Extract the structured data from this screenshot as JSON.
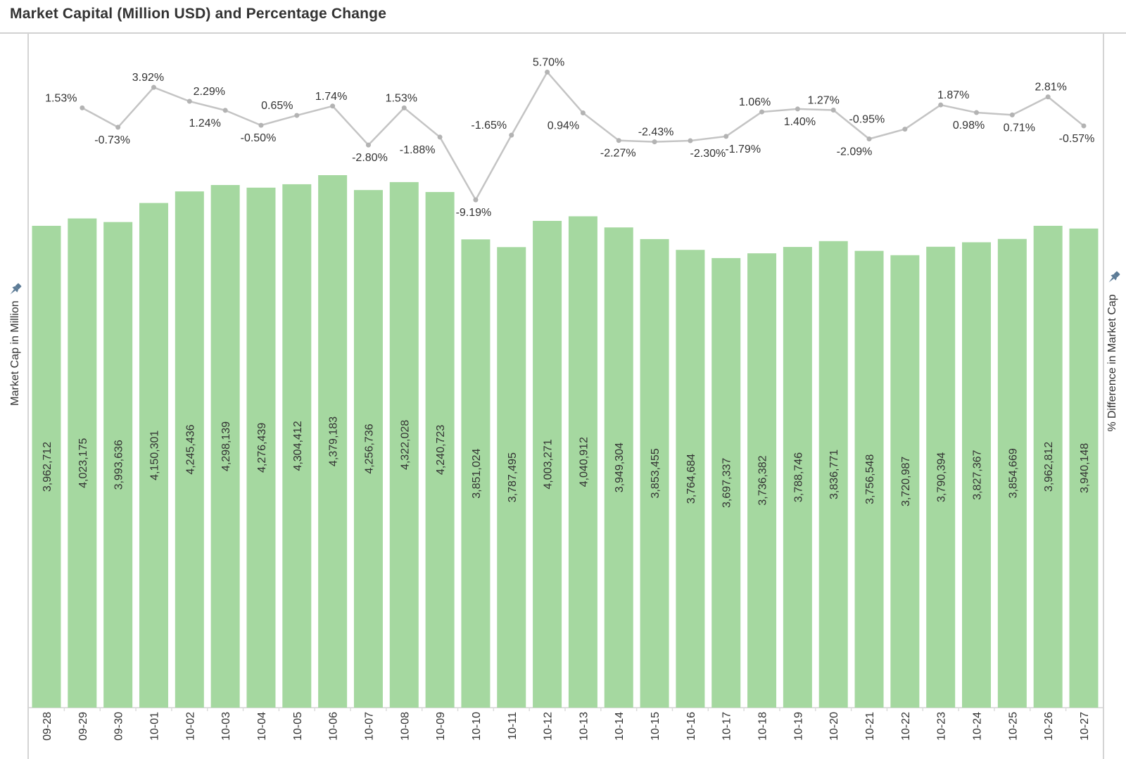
{
  "title": "Market Capital (Million USD) and Percentage Change",
  "left_axis": {
    "title": "Market Cap in Million",
    "pinned": true
  },
  "right_axis": {
    "title": "% Difference in Market Cap",
    "pinned": true
  },
  "colors": {
    "bar": "#a5d8a0",
    "line": "#c4c4c4",
    "marker": "#b3b3b3",
    "text": "#333333",
    "pane_border": "#d4d4d4",
    "tick": "#dcdcdc",
    "pin": "#5c7b96"
  },
  "chart_data": {
    "type": "combo-bar-line",
    "title": "Market Capital (Million USD) and Percentage Change",
    "categories": [
      "09-28",
      "09-29",
      "09-30",
      "10-01",
      "10-02",
      "10-03",
      "10-04",
      "10-05",
      "10-06",
      "10-07",
      "10-08",
      "10-09",
      "10-10",
      "10-11",
      "10-12",
      "10-13",
      "10-14",
      "10-15",
      "10-16",
      "10-17",
      "10-18",
      "10-19",
      "10-20",
      "10-21",
      "10-22",
      "10-23",
      "10-24",
      "10-25",
      "10-26",
      "10-27"
    ],
    "series": [
      {
        "name": "Market Cap in Million",
        "type": "bar",
        "axis": "left",
        "values": [
          3962712,
          4023175,
          3993636,
          4150301,
          4245436,
          4298139,
          4276439,
          4304412,
          4379183,
          4256736,
          4322028,
          4240723,
          3851024,
          3787495,
          4003271,
          4040912,
          3949304,
          3853455,
          3764684,
          3697337,
          3736382,
          3788746,
          3836771,
          3756548,
          3720987,
          3790394,
          3827367,
          3854669,
          3962812,
          3940148
        ],
        "labels": [
          "3,962,712",
          "4,023,175",
          "3,993,636",
          "4,150,301",
          "4,245,436",
          "4,298,139",
          "4,276,439",
          "4,304,412",
          "4,379,183",
          "4,256,736",
          "4,322,028",
          "4,240,723",
          "3,851,024",
          "3,787,495",
          "4,003,271",
          "4,040,912",
          "3,949,304",
          "3,853,455",
          "3,764,684",
          "3,697,337",
          "3,736,382",
          "3,788,746",
          "3,836,771",
          "3,756,548",
          "3,720,987",
          "3,790,394",
          "3,827,367",
          "3,854,669",
          "3,962,812",
          "3,940,148"
        ]
      },
      {
        "name": "% Difference in Market Cap",
        "type": "line",
        "axis": "right",
        "categories": [
          "09-29",
          "09-30",
          "10-01",
          "10-02",
          "10-03",
          "10-04",
          "10-05",
          "10-06",
          "10-07",
          "10-08",
          "10-09",
          "10-10",
          "10-11",
          "10-12",
          "10-13",
          "10-14",
          "10-15",
          "10-16",
          "10-17",
          "10-18",
          "10-19",
          "10-20",
          "10-21",
          "10-22",
          "10-23",
          "10-24",
          "10-25",
          "10-26",
          "10-27"
        ],
        "values": [
          1.53,
          -0.73,
          3.92,
          2.29,
          1.24,
          -0.5,
          0.65,
          1.74,
          -2.8,
          1.53,
          -1.88,
          -9.19,
          -1.65,
          5.7,
          0.94,
          -2.27,
          -2.43,
          -2.3,
          -1.79,
          1.06,
          1.4,
          1.27,
          -2.09,
          -0.95,
          1.87,
          0.98,
          0.71,
          2.81,
          -0.57
        ],
        "labels": [
          "1.53%",
          "-0.73%",
          "3.92%",
          "2.29%",
          "1.24%",
          "-0.50%",
          "0.65%",
          "1.74%",
          "-2.80%",
          "1.53%",
          "-1.88%",
          "-9.19%",
          "-1.65%",
          "5.70%",
          "0.94%",
          "-2.27%",
          "-2.43%",
          "-2.30%",
          "-1.79%",
          "1.06%",
          "1.40%",
          "1.27%",
          "-2.09%",
          "-0.95%",
          "1.87%",
          "0.98%",
          "0.71%",
          "2.81%",
          "-0.57%"
        ]
      }
    ],
    "xlabel": "",
    "ylabel_left": "Market Cap in Million",
    "ylabel_right": "% Difference in Market Cap",
    "left_ylim": [
      0,
      4400000
    ],
    "right_ylim": [
      -10,
      6
    ],
    "grid": false,
    "legend": "none",
    "layout": {
      "bar_label_rotation": -90,
      "x_label_rotation": -90,
      "line_label_sides": [
        "above",
        "below",
        "above",
        "above",
        "below",
        "below",
        "above",
        "above",
        "below",
        "above",
        "below",
        "below",
        "above",
        "above",
        "below",
        "below",
        "above",
        "below",
        "below",
        "above",
        "below",
        "above",
        "below",
        "above",
        "above",
        "below",
        "below",
        "above",
        "below"
      ],
      "line_label_dx": [
        -30,
        -8,
        -8,
        28,
        -29,
        -4,
        -28,
        -2,
        2,
        -4,
        -32,
        -3,
        -32,
        2,
        -28,
        -1,
        2,
        25,
        24,
        -10,
        3,
        -14,
        -21,
        -54,
        18,
        -11,
        10,
        4,
        -10
      ]
    }
  }
}
